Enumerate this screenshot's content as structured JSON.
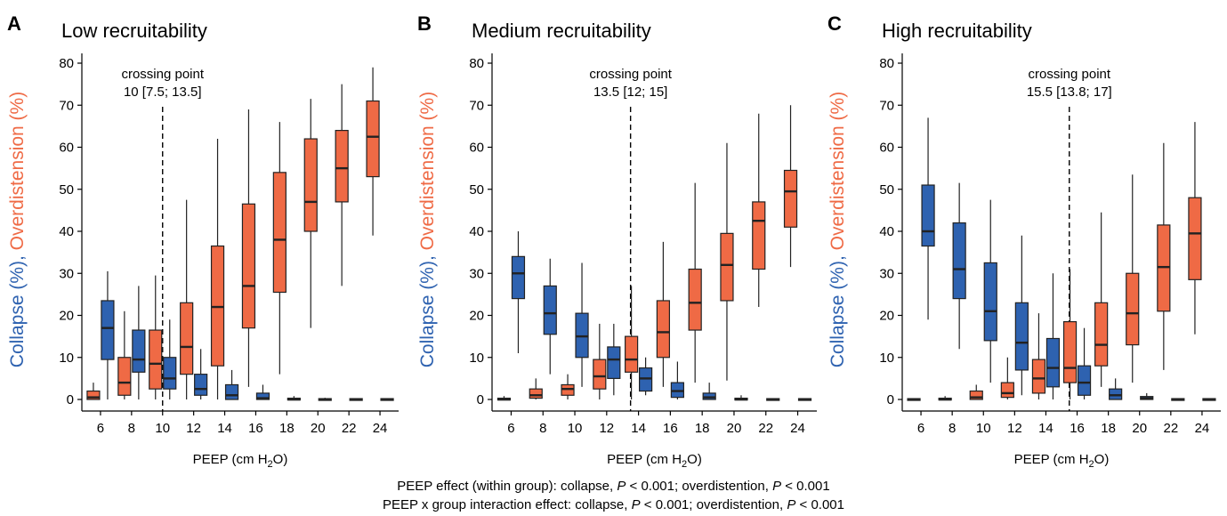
{
  "colors": {
    "collapse": "#2e62b0",
    "overdistension": "#ef6a45",
    "stroke": "#222222",
    "axis": "#000000"
  },
  "axes": {
    "xlabel_prefix": "PEEP (cm H",
    "xlabel_sub": "2",
    "xlabel_suffix": "O)",
    "ylabel_collapse": "Collapse (%),",
    "ylabel_overdistension": "Overdistension (%)",
    "yticks": [
      "0",
      "10",
      "20",
      "30",
      "40",
      "50",
      "60",
      "70",
      "80"
    ]
  },
  "footnotes": {
    "line1": {
      "a": "PEEP effect (within group): collapse, ",
      "p1": "P",
      "b": " < 0.001; overdistention, ",
      "p2": "P",
      "c": " < 0.001"
    },
    "line2": {
      "a": "PEEP x group interaction effect: collapse, ",
      "p1": "P",
      "b": " < 0.001; overdistention, ",
      "p2": "P",
      "c": " < 0.001"
    }
  },
  "chart_data": [
    {
      "type": "boxplot",
      "panel_letter": "A",
      "title": "Low recruitability",
      "xlabel": "PEEP (cm H2O)",
      "ylabel": "Collapse (%), Overdistension (%)",
      "categories": [
        "6",
        "8",
        "10",
        "12",
        "14",
        "16",
        "18",
        "20",
        "22",
        "24"
      ],
      "ylim": [
        -2,
        83
      ],
      "crossing_point": {
        "x": 10,
        "label_line1": "crossing point",
        "label_line2": "10 [7.5; 13.5]"
      },
      "series": [
        {
          "name": "Collapse",
          "boxes": [
            {
              "x": 6,
              "min": 0,
              "q1": 9.5,
              "median": 17,
              "q3": 23.5,
              "max": 30.5
            },
            {
              "x": 8,
              "min": 0,
              "q1": 6.5,
              "median": 9.5,
              "q3": 16.5,
              "max": 27
            },
            {
              "x": 10,
              "min": 0,
              "q1": 2.5,
              "median": 5,
              "q3": 10,
              "max": 19
            },
            {
              "x": 12,
              "min": 0,
              "q1": 1,
              "median": 2.5,
              "q3": 6,
              "max": 12
            },
            {
              "x": 14,
              "min": 0,
              "q1": 0,
              "median": 1,
              "q3": 3.5,
              "max": 7
            },
            {
              "x": 16,
              "min": 0,
              "q1": 0,
              "median": 0.3,
              "q3": 1.5,
              "max": 3.5
            },
            {
              "x": 18,
              "min": 0,
              "q1": 0,
              "median": 0,
              "q3": 0.3,
              "max": 0.8
            },
            {
              "x": 20,
              "min": 0,
              "q1": 0,
              "median": 0,
              "q3": 0.2,
              "max": 0.4
            },
            {
              "x": 22,
              "min": 0,
              "q1": 0,
              "median": 0,
              "q3": 0.2,
              "max": 0.3
            },
            {
              "x": 24,
              "min": 0,
              "q1": 0,
              "median": 0,
              "q3": 0.2,
              "max": 0.3
            }
          ]
        },
        {
          "name": "Overdistension",
          "boxes": [
            {
              "x": 6,
              "min": 0,
              "q1": 0,
              "median": 0.5,
              "q3": 2,
              "max": 4
            },
            {
              "x": 8,
              "min": 0,
              "q1": 1,
              "median": 4,
              "q3": 10,
              "max": 21
            },
            {
              "x": 10,
              "min": 0,
              "q1": 2.5,
              "median": 8.5,
              "q3": 16.5,
              "max": 29.5
            },
            {
              "x": 12,
              "min": 0,
              "q1": 6,
              "median": 12.5,
              "q3": 23,
              "max": 47.5
            },
            {
              "x": 14,
              "min": 0,
              "q1": 8,
              "median": 22,
              "q3": 36.5,
              "max": 62
            },
            {
              "x": 16,
              "min": 3,
              "q1": 17,
              "median": 27,
              "q3": 46.5,
              "max": 69
            },
            {
              "x": 18,
              "min": 6,
              "q1": 25.5,
              "median": 38,
              "q3": 54,
              "max": 66
            },
            {
              "x": 20,
              "min": 17,
              "q1": 40,
              "median": 47,
              "q3": 62,
              "max": 71.5
            },
            {
              "x": 22,
              "min": 27,
              "q1": 47,
              "median": 55,
              "q3": 64,
              "max": 75
            },
            {
              "x": 24,
              "min": 39,
              "q1": 53,
              "median": 62.5,
              "q3": 71,
              "max": 79
            }
          ]
        }
      ]
    },
    {
      "type": "boxplot",
      "panel_letter": "B",
      "title": "Medium recruitability",
      "xlabel": "PEEP (cm H2O)",
      "ylabel": "Collapse (%), Overdistension (%)",
      "categories": [
        "6",
        "8",
        "10",
        "12",
        "14",
        "16",
        "18",
        "20",
        "22",
        "24"
      ],
      "ylim": [
        -2,
        83
      ],
      "crossing_point": {
        "x": 13.5,
        "label_line1": "crossing point",
        "label_line2": "13.5 [12; 15]"
      },
      "series": [
        {
          "name": "Collapse",
          "boxes": [
            {
              "x": 6,
              "min": 11,
              "q1": 24,
              "median": 30,
              "q3": 34,
              "max": 40
            },
            {
              "x": 8,
              "min": 6,
              "q1": 15.5,
              "median": 20.5,
              "q3": 27,
              "max": 33.5
            },
            {
              "x": 10,
              "min": 3,
              "q1": 10,
              "median": 15,
              "q3": 20.5,
              "max": 32.5
            },
            {
              "x": 12,
              "min": 1,
              "q1": 5,
              "median": 9.5,
              "q3": 12.5,
              "max": 18
            },
            {
              "x": 14,
              "min": 1,
              "q1": 2,
              "median": 5,
              "q3": 7.5,
              "max": 10
            },
            {
              "x": 16,
              "min": 0,
              "q1": 0.5,
              "median": 2,
              "q3": 4,
              "max": 9
            },
            {
              "x": 18,
              "min": 0,
              "q1": 0,
              "median": 0.5,
              "q3": 1.5,
              "max": 4
            },
            {
              "x": 20,
              "min": 0,
              "q1": 0,
              "median": 0,
              "q3": 0.3,
              "max": 1
            },
            {
              "x": 22,
              "min": 0,
              "q1": 0,
              "median": 0,
              "q3": 0.2,
              "max": 0.3
            },
            {
              "x": 24,
              "min": 0,
              "q1": 0,
              "median": 0,
              "q3": 0.2,
              "max": 0.3
            }
          ]
        },
        {
          "name": "Overdistension",
          "boxes": [
            {
              "x": 6,
              "min": 0,
              "q1": 0,
              "median": 0,
              "q3": 0.3,
              "max": 0.8
            },
            {
              "x": 8,
              "min": 0,
              "q1": 0.3,
              "median": 1,
              "q3": 2.5,
              "max": 5
            },
            {
              "x": 10,
              "min": 0,
              "q1": 1,
              "median": 2.5,
              "q3": 3.5,
              "max": 6
            },
            {
              "x": 12,
              "min": 0,
              "q1": 2.5,
              "median": 5.5,
              "q3": 9.5,
              "max": 18
            },
            {
              "x": 14,
              "min": 0,
              "q1": 6.5,
              "median": 9.5,
              "q3": 15,
              "max": 27
            },
            {
              "x": 16,
              "min": 3,
              "q1": 10,
              "median": 16,
              "q3": 23.5,
              "max": 37.5
            },
            {
              "x": 18,
              "min": 4,
              "q1": 16.5,
              "median": 23,
              "q3": 31,
              "max": 51.5
            },
            {
              "x": 20,
              "min": 4.5,
              "q1": 23.5,
              "median": 32,
              "q3": 39.5,
              "max": 61
            },
            {
              "x": 22,
              "min": 22,
              "q1": 31,
              "median": 42.5,
              "q3": 47,
              "max": 68
            },
            {
              "x": 24,
              "min": 31.5,
              "q1": 41,
              "median": 49.5,
              "q3": 54.5,
              "max": 70
            }
          ]
        }
      ]
    },
    {
      "type": "boxplot",
      "panel_letter": "C",
      "title": "High recruitability",
      "xlabel": "PEEP (cm H2O)",
      "ylabel": "Collapse (%), Overdistension (%)",
      "categories": [
        "6",
        "8",
        "10",
        "12",
        "14",
        "16",
        "18",
        "20",
        "22",
        "24"
      ],
      "ylim": [
        -2,
        83
      ],
      "crossing_point": {
        "x": 15.5,
        "label_line1": "crossing point",
        "label_line2": "15.5 [13.8; 17]"
      },
      "series": [
        {
          "name": "Collapse",
          "boxes": [
            {
              "x": 6,
              "min": 19,
              "q1": 36.5,
              "median": 40,
              "q3": 51,
              "max": 67
            },
            {
              "x": 8,
              "min": 12,
              "q1": 24,
              "median": 31,
              "q3": 42,
              "max": 51.5
            },
            {
              "x": 10,
              "min": 4,
              "q1": 14,
              "median": 21,
              "q3": 32.5,
              "max": 47.5
            },
            {
              "x": 12,
              "min": 1,
              "q1": 7,
              "median": 13.5,
              "q3": 23,
              "max": 39
            },
            {
              "x": 14,
              "min": 0,
              "q1": 3,
              "median": 7.5,
              "q3": 14.5,
              "max": 30
            },
            {
              "x": 16,
              "min": 0,
              "q1": 1,
              "median": 4,
              "q3": 8,
              "max": 17
            },
            {
              "x": 18,
              "min": 0,
              "q1": 0,
              "median": 1,
              "q3": 2.5,
              "max": 5
            },
            {
              "x": 20,
              "min": 0,
              "q1": 0,
              "median": 0.3,
              "q3": 0.7,
              "max": 1.5
            },
            {
              "x": 22,
              "min": 0,
              "q1": 0,
              "median": 0,
              "q3": 0.2,
              "max": 0.3
            },
            {
              "x": 24,
              "min": 0,
              "q1": 0,
              "median": 0,
              "q3": 0.2,
              "max": 0.3
            }
          ]
        },
        {
          "name": "Overdistension",
          "boxes": [
            {
              "x": 6,
              "min": 0,
              "q1": 0,
              "median": 0,
              "q3": 0.2,
              "max": 0.3
            },
            {
              "x": 8,
              "min": 0,
              "q1": 0,
              "median": 0,
              "q3": 0.3,
              "max": 0.8
            },
            {
              "x": 10,
              "min": 0,
              "q1": 0,
              "median": 0.5,
              "q3": 2,
              "max": 3.5
            },
            {
              "x": 12,
              "min": 0,
              "q1": 0.5,
              "median": 1.5,
              "q3": 4,
              "max": 10
            },
            {
              "x": 14,
              "min": 0,
              "q1": 1.5,
              "median": 5,
              "q3": 9.5,
              "max": 20.5
            },
            {
              "x": 16,
              "min": 0,
              "q1": 4,
              "median": 7.5,
              "q3": 18.5,
              "max": 31
            },
            {
              "x": 18,
              "min": 3,
              "q1": 8,
              "median": 13,
              "q3": 23,
              "max": 44.5
            },
            {
              "x": 20,
              "min": 4,
              "q1": 13,
              "median": 20.5,
              "q3": 30,
              "max": 53.5
            },
            {
              "x": 22,
              "min": 7,
              "q1": 21,
              "median": 31.5,
              "q3": 41.5,
              "max": 61
            },
            {
              "x": 24,
              "min": 15.5,
              "q1": 28.5,
              "median": 39.5,
              "q3": 48,
              "max": 66
            }
          ]
        }
      ]
    }
  ]
}
